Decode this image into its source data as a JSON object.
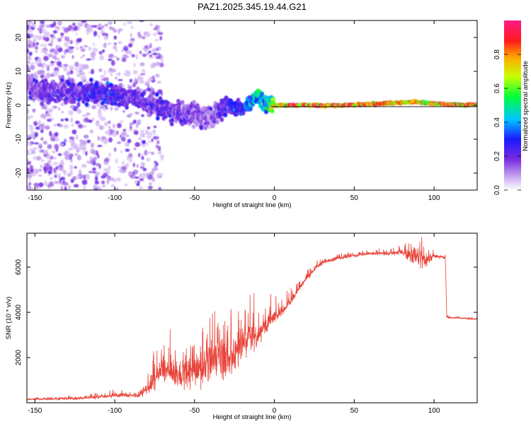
{
  "title": "PAZ1.2025.345.19.44.G21",
  "chart_data": [
    {
      "type": "heatmap",
      "name": "spectrogram",
      "xlabel": "Height of straight line (km)",
      "ylabel": "Frequency (Hz)",
      "xlim": [
        -155,
        127
      ],
      "ylim": [
        -25,
        25
      ],
      "xticks": [
        -150,
        -100,
        -50,
        0,
        50,
        100
      ],
      "yticks": [
        -20,
        -10,
        0,
        10,
        20
      ],
      "colorbar": {
        "label": "Normalized spectral amplitude",
        "range": [
          0,
          1
        ],
        "ticks": [
          0.0,
          0.2,
          0.4,
          0.6,
          0.8
        ]
      },
      "ridge": {
        "x": [
          -150,
          -140,
          -130,
          -120,
          -110,
          -100,
          -90,
          -80,
          -70,
          -60,
          -50,
          -40,
          -35,
          -30,
          -20,
          -10,
          -5,
          0,
          10,
          20,
          40,
          60,
          80,
          90,
          100,
          110,
          125
        ],
        "freq": [
          5,
          4.5,
          4,
          3.8,
          3.5,
          3,
          2.5,
          1,
          -1,
          -2,
          -3,
          -4,
          -2,
          0,
          -1,
          2.5,
          0.5,
          0,
          0,
          0,
          0,
          0.3,
          0.8,
          1,
          0.5,
          0.2,
          0.2
        ],
        "amplitude": [
          0.25,
          0.3,
          0.3,
          0.32,
          0.35,
          0.35,
          0.3,
          0.28,
          0.3,
          0.3,
          0.25,
          0.22,
          0.3,
          0.35,
          0.4,
          0.6,
          0.5,
          0.9,
          0.95,
          0.95,
          0.95,
          0.9,
          0.85,
          0.8,
          0.9,
          0.9,
          0.9
        ]
      }
    },
    {
      "type": "line",
      "name": "snr",
      "xlabel": "Height of straight line (km)",
      "ylabel": "SNR (10 * v/v)",
      "xlim": [
        -155,
        127
      ],
      "ylim": [
        0,
        7500
      ],
      "xticks": [
        -150,
        -100,
        -50,
        0,
        50,
        100
      ],
      "yticks": [
        2000,
        4000,
        6000
      ],
      "color": "#e8443a",
      "envelope": {
        "x": [
          -155,
          -120,
          -95,
          -85,
          -80,
          -75,
          -70,
          -60,
          -50,
          -40,
          -35,
          -30,
          -25,
          -20,
          -15,
          -10,
          -5,
          0,
          5,
          10,
          20,
          25,
          30,
          40,
          50,
          60,
          70,
          80,
          85,
          90,
          95,
          100,
          105,
          107,
          108,
          110,
          115,
          127
        ],
        "y": [
          150,
          200,
          350,
          300,
          600,
          1000,
          1500,
          1200,
          1300,
          1700,
          2400,
          1600,
          2200,
          2600,
          2800,
          3000,
          3500,
          3800,
          4100,
          4500,
          5500,
          5900,
          6200,
          6400,
          6500,
          6600,
          6600,
          6650,
          6550,
          6450,
          6300,
          6500,
          6450,
          6400,
          3800,
          3750,
          3750,
          3700
        ],
        "noise": [
          50,
          100,
          150,
          150,
          400,
          800,
          900,
          900,
          1100,
          1500,
          1500,
          1400,
          1400,
          1300,
          1200,
          900,
          700,
          500,
          400,
          300,
          200,
          150,
          150,
          120,
          120,
          120,
          120,
          200,
          500,
          800,
          600,
          150,
          120,
          100,
          60,
          50,
          50,
          50
        ]
      }
    }
  ]
}
